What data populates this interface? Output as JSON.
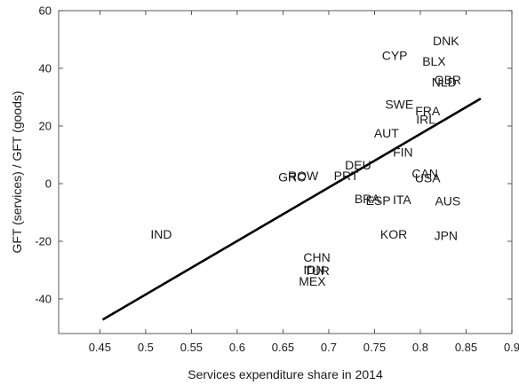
{
  "chart_data": {
    "type": "scatter",
    "title": "",
    "xlabel": "Services expenditure share in 2014",
    "ylabel": "GFT (services) / GFT (goods)",
    "xlim": [
      0.405,
      0.9
    ],
    "ylim": [
      -52,
      60
    ],
    "xticks": [
      0.45,
      0.5,
      0.55,
      0.6,
      0.65,
      0.7,
      0.75,
      0.8,
      0.85,
      0.9
    ],
    "xtick_labels": [
      "0.45",
      "0.5",
      "0.55",
      "0.6",
      "0.65",
      "0.7",
      "0.75",
      "0.8",
      "0.85",
      "0.9"
    ],
    "yticks": [
      -40,
      -20,
      0,
      20,
      40,
      60
    ],
    "ytick_labels": [
      "-40",
      "-20",
      "0",
      "20",
      "40",
      "60"
    ],
    "grid": false,
    "points": [
      {
        "label": "DNK",
        "x": 0.828,
        "y": 49.5
      },
      {
        "label": "CYP",
        "x": 0.772,
        "y": 44.5
      },
      {
        "label": "BLX",
        "x": 0.815,
        "y": 42.5
      },
      {
        "label": "GBR",
        "x": 0.83,
        "y": 36.0
      },
      {
        "label": "NLD",
        "x": 0.826,
        "y": 35.2
      },
      {
        "label": "SWE",
        "x": 0.777,
        "y": 27.5
      },
      {
        "label": "FRA",
        "x": 0.808,
        "y": 25.2
      },
      {
        "label": "IRL",
        "x": 0.806,
        "y": 22.3
      },
      {
        "label": "AUT",
        "x": 0.763,
        "y": 17.5
      },
      {
        "label": "FIN",
        "x": 0.781,
        "y": 11.0
      },
      {
        "label": "DEU",
        "x": 0.732,
        "y": 6.5
      },
      {
        "label": "CAN",
        "x": 0.805,
        "y": 3.5
      },
      {
        "label": "USA",
        "x": 0.808,
        "y": 2.0
      },
      {
        "label": "ROW",
        "x": 0.672,
        "y": 2.8
      },
      {
        "label": "GRC",
        "x": 0.66,
        "y": 2.3
      },
      {
        "label": "PRT",
        "x": 0.719,
        "y": 2.8
      },
      {
        "label": "BRA",
        "x": 0.742,
        "y": -5.3
      },
      {
        "label": "ESP",
        "x": 0.754,
        "y": -5.8
      },
      {
        "label": "ITA",
        "x": 0.78,
        "y": -5.5
      },
      {
        "label": "AUS",
        "x": 0.83,
        "y": -6.0
      },
      {
        "label": "IND",
        "x": 0.517,
        "y": -17.5
      },
      {
        "label": "KOR",
        "x": 0.771,
        "y": -17.5
      },
      {
        "label": "JPN",
        "x": 0.828,
        "y": -18.0
      },
      {
        "label": "CHN",
        "x": 0.687,
        "y": -25.5
      },
      {
        "label": "TUR",
        "x": 0.687,
        "y": -30.2
      },
      {
        "label": "IDN",
        "x": 0.684,
        "y": -29.8
      },
      {
        "label": "MEX",
        "x": 0.682,
        "y": -33.8
      }
    ],
    "fit_line": {
      "x": [
        0.453,
        0.866
      ],
      "y": [
        -47.2,
        29.5
      ]
    }
  }
}
